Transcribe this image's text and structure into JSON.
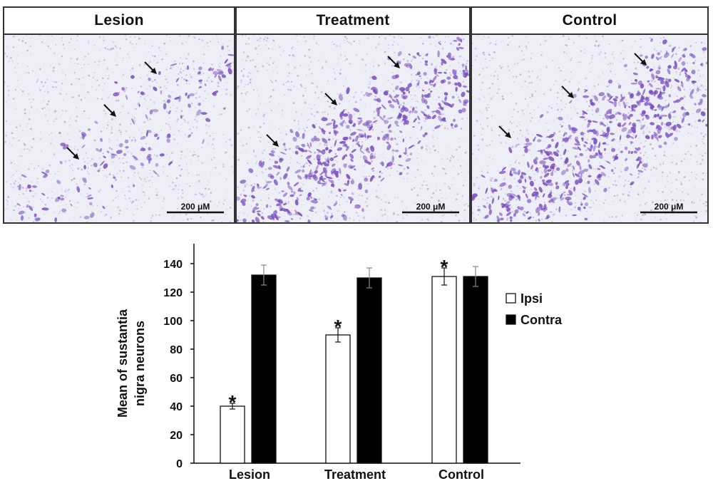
{
  "panels": [
    {
      "title": "Lesion",
      "scale_label": "200 μM",
      "density": 0.25,
      "arrows": 3
    },
    {
      "title": "Treatment",
      "scale_label": "200 μM",
      "density": 0.8,
      "arrows": 3
    },
    {
      "title": "Control",
      "scale_label": "200 μM",
      "density": 0.9,
      "arrows": 3
    }
  ],
  "colors": {
    "stain": "#7a4fc0",
    "stain_light": "#b79be0",
    "tissue_bg": "#eeeef6",
    "ipsi_fill": "#ffffff",
    "contra_fill": "#000000"
  },
  "chart_data": {
    "type": "bar",
    "categories": [
      "Lesion",
      "Treatment",
      "Control"
    ],
    "series": [
      {
        "name": "Ipsi",
        "values": [
          40,
          90,
          131
        ],
        "errors": [
          2,
          5,
          6
        ],
        "significant": [
          true,
          true,
          true
        ]
      },
      {
        "name": "Contra",
        "values": [
          132,
          130,
          131
        ],
        "errors": [
          7,
          7,
          7
        ]
      }
    ],
    "ylabel": "Mean of sustantia nigra neurons",
    "ylim": [
      0,
      140
    ],
    "yticks": [
      0,
      20,
      40,
      60,
      80,
      100,
      120,
      140
    ],
    "significance_marker": "*",
    "grid": false,
    "legend_position": "right"
  }
}
